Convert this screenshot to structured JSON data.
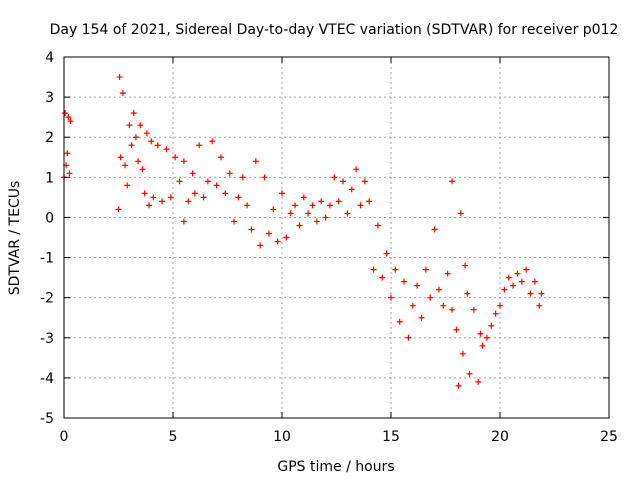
{
  "chart_data": {
    "type": "scatter",
    "title": "Day 154 of 2021, Sidereal Day-to-day VTEC variation (SDTVAR) for receiver p012",
    "xlabel": "GPS time / hours",
    "ylabel": "SDTVAR / TECUs",
    "xlim": [
      0,
      25
    ],
    "ylim": [
      -5,
      4
    ],
    "xticks": [
      "0",
      "5",
      "10",
      "15",
      "20",
      "25"
    ],
    "yticks": [
      "-5",
      "-4",
      "-3",
      "-2",
      "-1",
      "0",
      "1",
      "2",
      "3",
      "4"
    ],
    "grid": true,
    "marker": "+",
    "color": "#ff0000",
    "series": [
      {
        "name": "SDTVAR",
        "points": [
          [
            0.0,
            1.0
          ],
          [
            0.05,
            2.6
          ],
          [
            0.1,
            1.3
          ],
          [
            0.15,
            1.6
          ],
          [
            0.2,
            2.5
          ],
          [
            0.25,
            1.1
          ],
          [
            0.3,
            2.4
          ],
          [
            2.5,
            0.2
          ],
          [
            2.55,
            3.5
          ],
          [
            2.6,
            1.5
          ],
          [
            2.7,
            3.1
          ],
          [
            2.8,
            1.3
          ],
          [
            2.9,
            0.8
          ],
          [
            3.0,
            2.3
          ],
          [
            3.1,
            1.8
          ],
          [
            3.2,
            2.6
          ],
          [
            3.3,
            2.0
          ],
          [
            3.4,
            1.4
          ],
          [
            3.5,
            2.3
          ],
          [
            3.6,
            1.2
          ],
          [
            3.7,
            0.6
          ],
          [
            3.8,
            2.1
          ],
          [
            3.9,
            0.3
          ],
          [
            4.0,
            1.9
          ],
          [
            4.1,
            0.5
          ],
          [
            4.3,
            1.8
          ],
          [
            4.5,
            0.4
          ],
          [
            4.7,
            1.7
          ],
          [
            4.9,
            0.5
          ],
          [
            5.1,
            1.5
          ],
          [
            5.3,
            0.9
          ],
          [
            5.5,
            1.4
          ],
          [
            5.5,
            -0.1
          ],
          [
            5.7,
            0.4
          ],
          [
            5.9,
            1.1
          ],
          [
            6.0,
            0.6
          ],
          [
            6.2,
            1.8
          ],
          [
            6.4,
            0.5
          ],
          [
            6.6,
            0.9
          ],
          [
            6.8,
            1.9
          ],
          [
            7.0,
            0.8
          ],
          [
            7.2,
            1.5
          ],
          [
            7.4,
            0.6
          ],
          [
            7.6,
            1.1
          ],
          [
            7.8,
            -0.1
          ],
          [
            8.0,
            0.5
          ],
          [
            8.2,
            1.0
          ],
          [
            8.4,
            0.3
          ],
          [
            8.6,
            -0.3
          ],
          [
            8.8,
            1.4
          ],
          [
            9.0,
            -0.7
          ],
          [
            9.2,
            1.0
          ],
          [
            9.4,
            -0.4
          ],
          [
            9.6,
            0.2
          ],
          [
            9.8,
            -0.6
          ],
          [
            10.0,
            0.6
          ],
          [
            10.2,
            -0.5
          ],
          [
            10.4,
            0.1
          ],
          [
            10.6,
            0.3
          ],
          [
            10.8,
            -0.2
          ],
          [
            11.0,
            0.5
          ],
          [
            11.2,
            0.1
          ],
          [
            11.4,
            0.3
          ],
          [
            11.6,
            -0.1
          ],
          [
            11.8,
            0.4
          ],
          [
            12.0,
            0.0
          ],
          [
            12.2,
            0.3
          ],
          [
            12.4,
            1.0
          ],
          [
            12.6,
            0.4
          ],
          [
            12.8,
            0.9
          ],
          [
            13.0,
            0.1
          ],
          [
            13.2,
            0.7
          ],
          [
            13.4,
            1.2
          ],
          [
            13.6,
            0.3
          ],
          [
            13.8,
            0.9
          ],
          [
            14.0,
            0.4
          ],
          [
            14.2,
            -1.3
          ],
          [
            14.4,
            -0.2
          ],
          [
            14.6,
            -1.5
          ],
          [
            14.8,
            -0.9
          ],
          [
            15.0,
            -2.0
          ],
          [
            15.2,
            -1.3
          ],
          [
            15.4,
            -2.6
          ],
          [
            15.6,
            -1.6
          ],
          [
            15.8,
            -3.0
          ],
          [
            16.0,
            -2.2
          ],
          [
            16.2,
            -1.7
          ],
          [
            16.4,
            -2.5
          ],
          [
            16.6,
            -1.3
          ],
          [
            16.8,
            -2.0
          ],
          [
            17.0,
            -0.3
          ],
          [
            17.2,
            -1.8
          ],
          [
            17.4,
            -2.2
          ],
          [
            17.6,
            -1.4
          ],
          [
            17.8,
            -2.3
          ],
          [
            17.8,
            0.9
          ],
          [
            18.0,
            -2.8
          ],
          [
            18.1,
            -4.2
          ],
          [
            18.2,
            0.1
          ],
          [
            18.3,
            -3.4
          ],
          [
            18.4,
            -1.2
          ],
          [
            18.5,
            -1.9
          ],
          [
            18.6,
            -3.9
          ],
          [
            18.8,
            -2.3
          ],
          [
            19.0,
            -4.1
          ],
          [
            19.1,
            -2.9
          ],
          [
            19.2,
            -3.2
          ],
          [
            19.4,
            -3.0
          ],
          [
            19.6,
            -2.7
          ],
          [
            19.8,
            -2.4
          ],
          [
            20.0,
            -2.2
          ],
          [
            20.2,
            -1.8
          ],
          [
            20.4,
            -1.5
          ],
          [
            20.6,
            -1.7
          ],
          [
            20.8,
            -1.4
          ],
          [
            21.0,
            -1.6
          ],
          [
            21.2,
            -1.3
          ],
          [
            21.4,
            -1.9
          ],
          [
            21.6,
            -1.6
          ],
          [
            21.8,
            -2.2
          ],
          [
            21.9,
            -1.9
          ]
        ]
      }
    ]
  }
}
